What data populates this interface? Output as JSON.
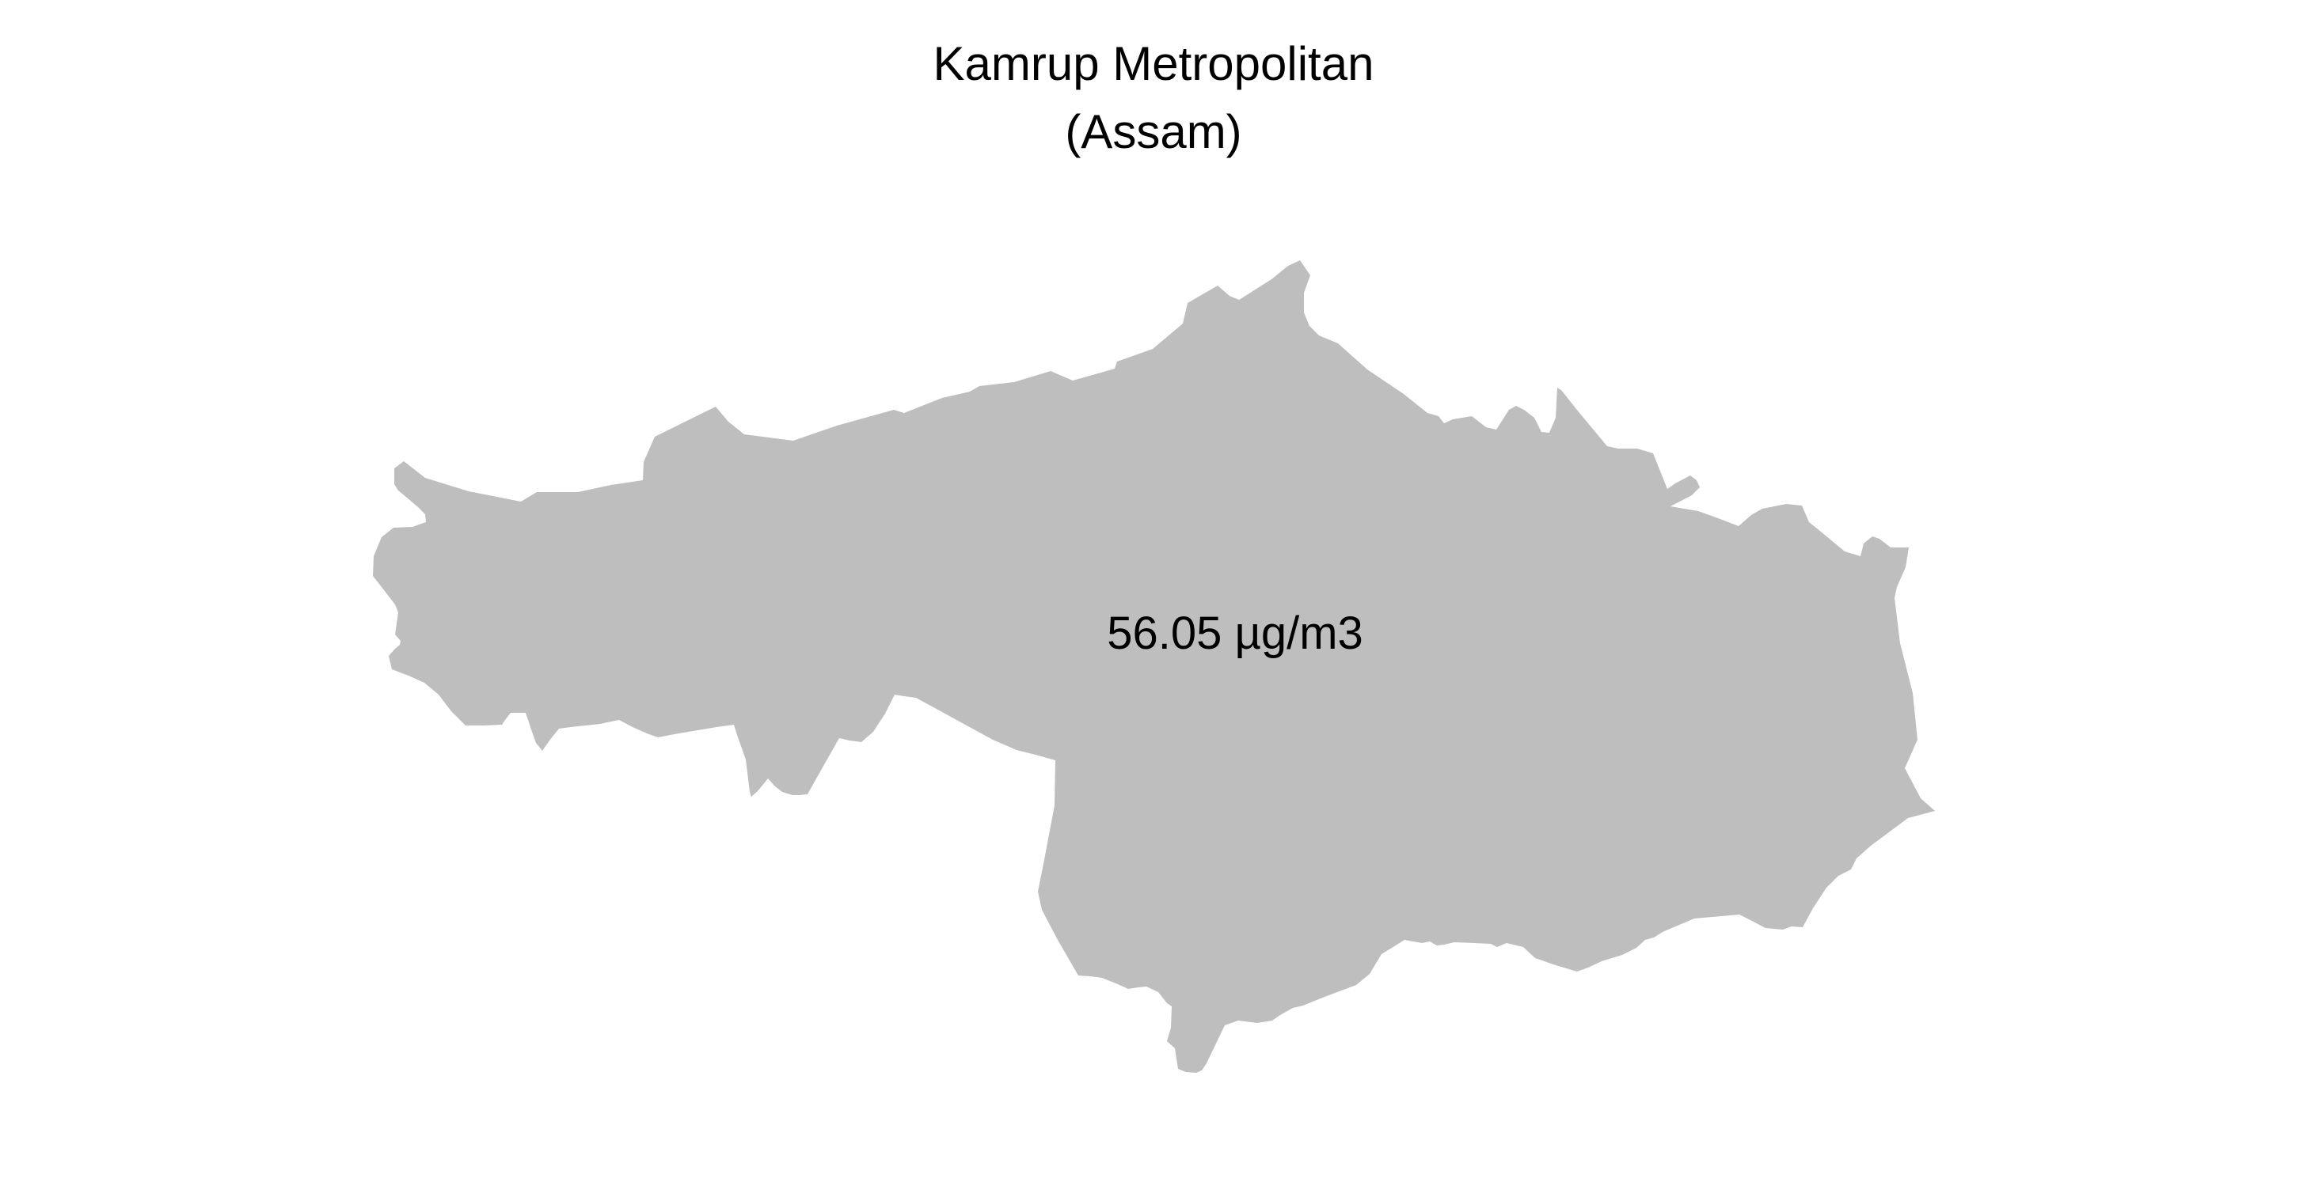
{
  "map": {
    "title": "Kamrup Metropolitan",
    "subtitle": "(Assam)",
    "region_name": "Kamrup Metropolitan",
    "value_label": "56.05 µg/m3",
    "fill_color": "#bebebe",
    "text_color": "#000000",
    "background_color": "#ffffff"
  }
}
